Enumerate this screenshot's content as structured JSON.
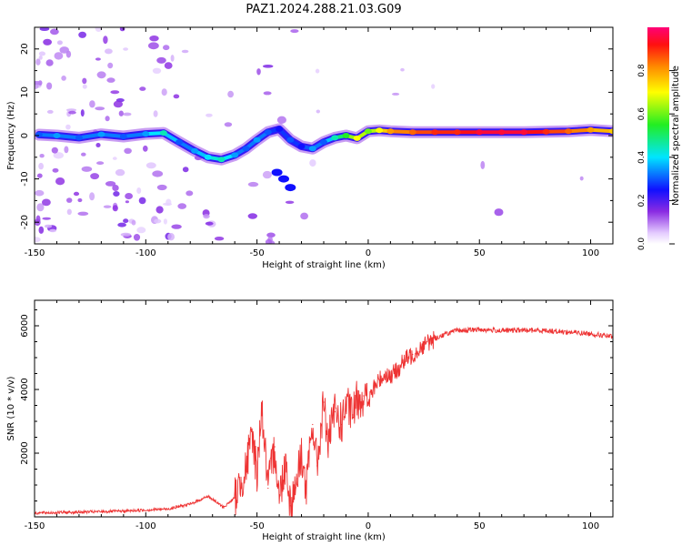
{
  "title": "PAZ1.2024.288.21.03.G09",
  "chart_data": [
    {
      "type": "heatmap",
      "xlabel": "Height of straight line (km)",
      "ylabel": "Frequency (Hz)",
      "xlim": [
        -150,
        110
      ],
      "ylim": [
        -25,
        25
      ],
      "xticks": [
        -150,
        -100,
        -50,
        0,
        50,
        100
      ],
      "yticks": [
        -20,
        -10,
        0,
        10,
        20
      ],
      "colorbar": {
        "label": "Normalized spectral amplitude",
        "range": [
          0.0,
          1.0
        ],
        "ticks": [
          0.0,
          0.2,
          0.4,
          0.6,
          0.8
        ]
      },
      "ridge": {
        "name": "",
        "x": [
          -148,
          -140,
          -130,
          -120,
          -110,
          -100,
          -92,
          -85,
          -78,
          -72,
          -66,
          -60,
          -55,
          -50,
          -45,
          -40,
          -35,
          -30,
          -25,
          -20,
          -15,
          -10,
          -5,
          0,
          5,
          10,
          20,
          30,
          40,
          50,
          60,
          70,
          80,
          90,
          100,
          110
        ],
        "y": [
          0.2,
          0.0,
          -0.5,
          0.3,
          -0.2,
          0.4,
          0.6,
          -1.5,
          -3.5,
          -5.0,
          -5.5,
          -4.5,
          -3.0,
          -1.0,
          0.8,
          1.5,
          -1.0,
          -2.5,
          -3.0,
          -1.5,
          -0.5,
          0.0,
          -0.6,
          1.0,
          1.2,
          1.0,
          0.8,
          0.8,
          0.8,
          0.8,
          0.8,
          0.8,
          0.9,
          1.0,
          1.3,
          1.0
        ],
        "amplitude": [
          0.3,
          0.35,
          0.3,
          0.35,
          0.3,
          0.35,
          0.45,
          0.3,
          0.35,
          0.4,
          0.45,
          0.35,
          0.3,
          0.35,
          0.3,
          0.25,
          0.3,
          0.25,
          0.35,
          0.3,
          0.45,
          0.55,
          0.7,
          0.6,
          0.7,
          0.8,
          0.85,
          0.9,
          0.9,
          0.95,
          0.95,
          0.95,
          0.9,
          0.85,
          0.8,
          0.75
        ]
      }
    },
    {
      "type": "line",
      "xlabel": "Height of straight line (km)",
      "ylabel": "SNR (10 * v/v)",
      "xlim": [
        -150,
        110
      ],
      "ylim": [
        0,
        6800
      ],
      "xticks": [
        -150,
        -100,
        -50,
        0,
        50,
        100
      ],
      "yticks": [
        2000,
        4000,
        6000
      ],
      "series": [
        {
          "name": "",
          "color": "#ee3333",
          "x": [
            -150,
            -130,
            -110,
            -90,
            -80,
            -72,
            -65,
            -60,
            -55,
            -52,
            -50,
            -48,
            -45,
            -42,
            -40,
            -37,
            -35,
            -32,
            -30,
            -28,
            -25,
            -23,
            -20,
            -18,
            -15,
            -12,
            -10,
            -7,
            -5,
            -2,
            0,
            3,
            5,
            8,
            10,
            13,
            15,
            18,
            20,
            25,
            30,
            35,
            40,
            50,
            60,
            70,
            80,
            90,
            100,
            110
          ],
          "y": [
            120,
            150,
            180,
            250,
            400,
            650,
            300,
            600,
            1500,
            2600,
            1300,
            3500,
            900,
            2200,
            600,
            1800,
            350,
            1200,
            2000,
            800,
            2900,
            1600,
            3600,
            2300,
            3300,
            2900,
            3500,
            3200,
            3700,
            3800,
            3600,
            4100,
            4300,
            4500,
            4400,
            4600,
            4800,
            5000,
            5100,
            5400,
            5600,
            5750,
            5850,
            5880,
            5850,
            5860,
            5850,
            5800,
            5750,
            5650
          ]
        }
      ]
    }
  ]
}
